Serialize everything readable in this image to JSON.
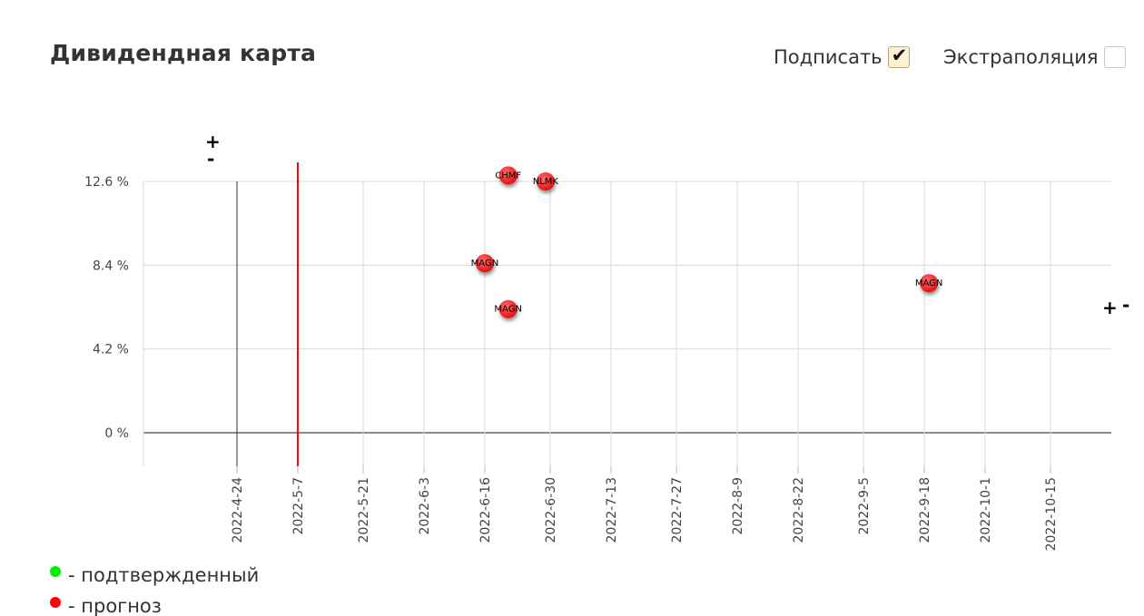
{
  "header": {
    "title": "Дивидендная карта",
    "sign_label": "Подписать",
    "sign_checked": true,
    "extrapolation_label": "Экстраполяция",
    "extrapolation_checked": false
  },
  "zoom": {
    "plus": "+",
    "minus": "-"
  },
  "legend": [
    {
      "label": "- подтвержденный",
      "color": "#00ee00"
    },
    {
      "label": "- прогноз",
      "color": "#ff0000"
    }
  ],
  "colors": {
    "forecast": "#ff2a2a",
    "confirmed": "#00ee00",
    "today_line": "#ff0000"
  },
  "chart_data": {
    "type": "scatter",
    "title": "",
    "xlabel": "",
    "ylabel": "",
    "x_type": "date",
    "x_ticks": [
      "2022-4-24",
      "2022-5-7",
      "2022-5-21",
      "2022-6-3",
      "2022-6-16",
      "2022-6-30",
      "2022-7-13",
      "2022-7-27",
      "2022-8-9",
      "2022-8-22",
      "2022-9-5",
      "2022-9-18",
      "2022-10-1",
      "2022-10-15"
    ],
    "xlim": [
      "2022-4-4",
      "2022-10-28"
    ],
    "y_ticks": [
      0,
      4.2,
      8.4,
      12.6
    ],
    "y_tick_labels": [
      "0 %",
      "4.2 %",
      "8.4 %",
      "12.6 %"
    ],
    "ylim": [
      -1.65,
      12.6
    ],
    "grid": true,
    "today_marker": "2022-5-7",
    "points": [
      {
        "label": "CHMF",
        "x": "2022-6-21",
        "y": 12.9,
        "status": "прогноз"
      },
      {
        "label": "NLMK",
        "x": "2022-6-29",
        "y": 12.6,
        "status": "прогноз"
      },
      {
        "label": "MAGN",
        "x": "2022-6-16",
        "y": 8.5,
        "status": "прогноз"
      },
      {
        "label": "MAGN",
        "x": "2022-6-21",
        "y": 6.2,
        "status": "прогноз"
      },
      {
        "label": "MAGN",
        "x": "2022-9-19",
        "y": 7.5,
        "status": "прогноз"
      }
    ]
  }
}
